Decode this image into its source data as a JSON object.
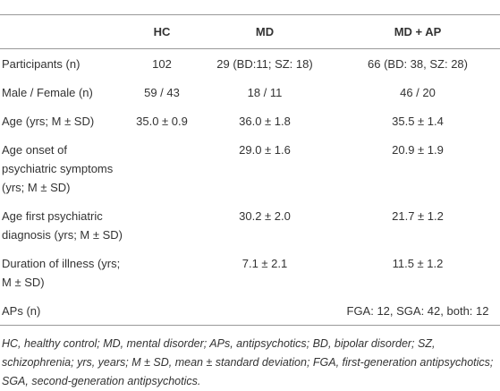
{
  "table": {
    "header": [
      "",
      "HC",
      "MD",
      "MD + AP"
    ],
    "rows": [
      [
        "Participants (n)",
        "102",
        "29 (BD:11; SZ: 18)",
        "66 (BD: 38, SZ: 28)"
      ],
      [
        "Male / Female (n)",
        "59 / 43",
        "18 / 11",
        "46 / 20"
      ],
      [
        "Age (yrs; M ± SD)",
        "35.0 ± 0.9",
        "36.0 ± 1.8",
        "35.5 ± 1.4"
      ],
      [
        "Age onset of\npsychiatric symptoms\n(yrs; M ± SD)",
        "",
        "29.0 ± 1.6",
        "20.9 ± 1.9"
      ],
      [
        "Age first psychiatric\ndiagnosis (yrs; M ± SD)",
        "",
        "30.2 ± 2.0",
        "21.7 ± 1.2"
      ],
      [
        "Duration of illness (yrs;\nM ± SD)",
        "",
        "7.1 ± 2.1",
        "11.5 ± 1.2"
      ],
      [
        "APs (n)",
        "",
        "",
        "FGA: 12, SGA: 42, both: 12"
      ]
    ]
  },
  "footnote": "HC, healthy control; MD, mental disorder; APs, antipsychotics; BD, bipolar disorder; SZ, schizophrenia; yrs, years; M ± SD, mean ± standard deviation; FGA, first-generation antipsychotics; SGA, second-generation antipsychotics."
}
